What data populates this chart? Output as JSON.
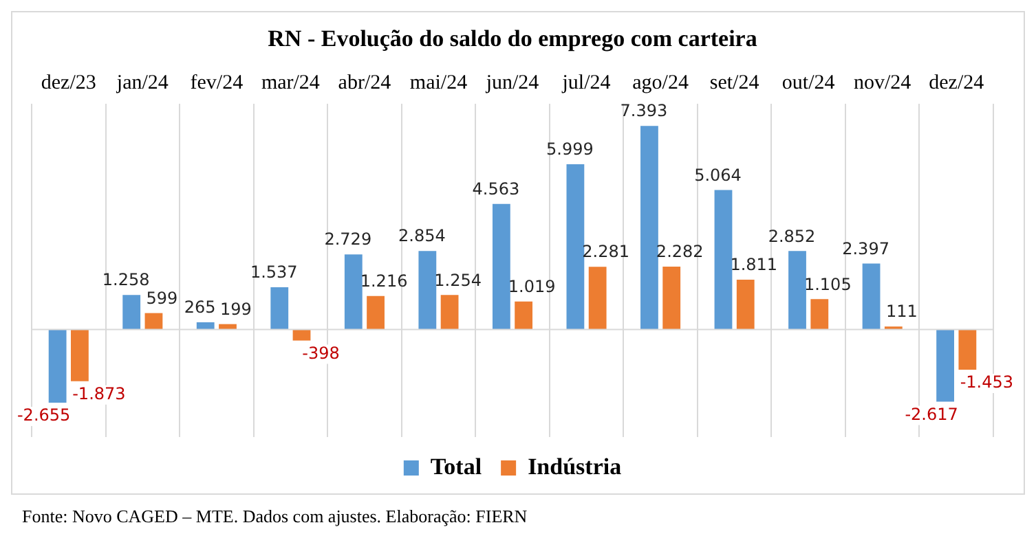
{
  "chart_data": {
    "type": "bar",
    "title": "RN - Evolução do saldo do emprego com carteira",
    "categories": [
      "dez/23",
      "jan/24",
      "fev/24",
      "mar/24",
      "abr/24",
      "mai/24",
      "jun/24",
      "jul/24",
      "ago/24",
      "set/24",
      "out/24",
      "nov/24",
      "dez/24"
    ],
    "series": [
      {
        "name": "Total",
        "color": "#5b9bd5",
        "values": [
          -2655,
          1258,
          265,
          1537,
          2729,
          2854,
          4563,
          5999,
          7393,
          5064,
          2852,
          2397,
          -2617
        ],
        "value_labels": [
          "-2.655",
          "1.258",
          "265",
          "1.537",
          "2.729",
          "2.854",
          "4.563",
          "5.999",
          "7.393",
          "5.064",
          "2.852",
          "2.397",
          "-2.617"
        ]
      },
      {
        "name": "Indústria",
        "color": "#ed7d31",
        "values": [
          -1873,
          599,
          199,
          -398,
          1216,
          1254,
          1019,
          2281,
          2282,
          1811,
          1105,
          111,
          -1453
        ],
        "value_labels": [
          "-1.873",
          "599",
          "199",
          "-398",
          "1.216",
          "1.254",
          "1.019",
          "2.281",
          "2.282",
          "1.811",
          "1.105",
          "111",
          "-1.453"
        ]
      }
    ],
    "ylim": [
      -3900,
      8200
    ],
    "tick_labels": "x",
    "grid": "x",
    "legend": "bottom",
    "annotations": [
      "Fonte: Novo CAGED – MTE. Dados com ajustes. Elaboração: FIERN"
    ]
  }
}
